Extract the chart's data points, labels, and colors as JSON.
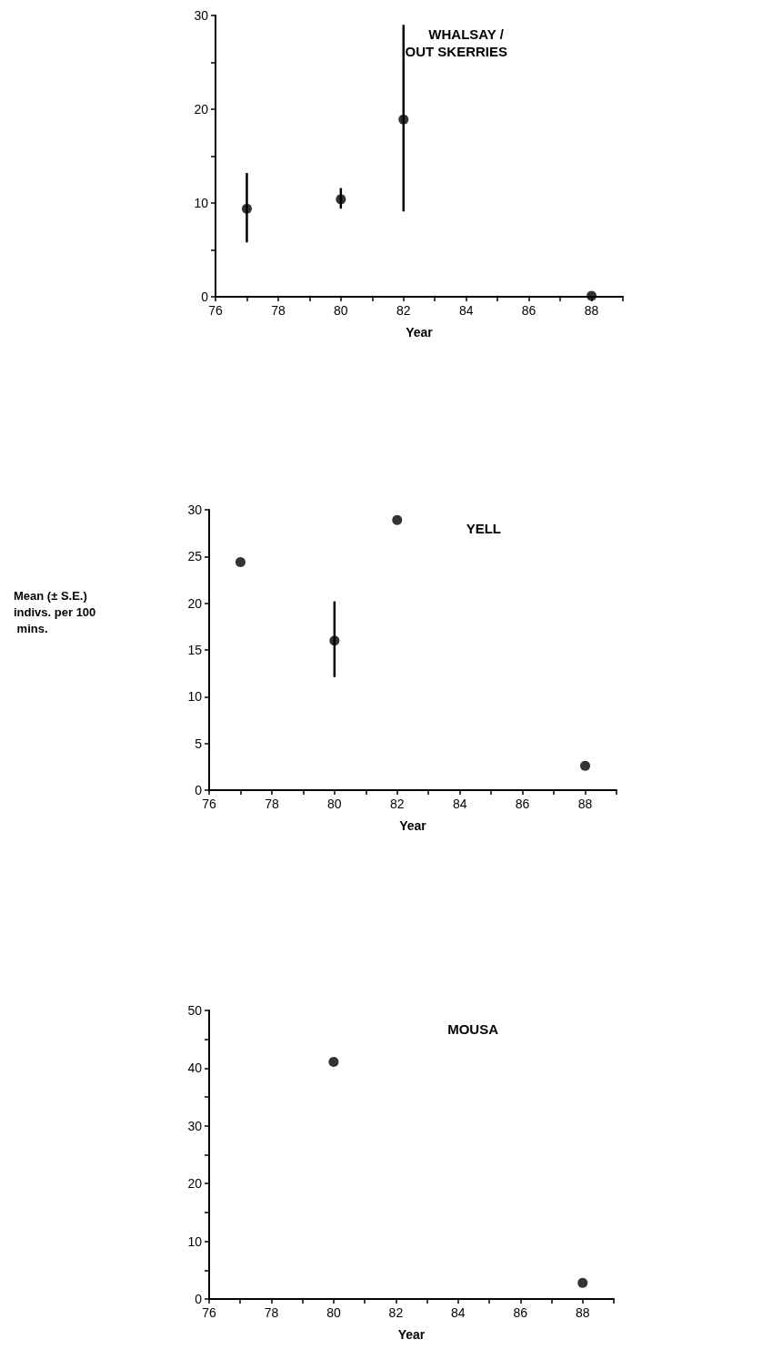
{
  "chart_data": [
    {
      "type": "scatter",
      "title": "WHALSAY / OUT SKERRIES",
      "xlabel": "Year",
      "x": [
        77,
        80,
        82,
        88
      ],
      "values": [
        9.4,
        10.4,
        18.9,
        0.1
      ],
      "errors": [
        [
          5.8,
          13.2
        ],
        [
          9.4,
          11.6
        ],
        [
          9.1,
          29.0
        ],
        null
      ],
      "color": "#000000",
      "marker": "circle",
      "xlim": [
        76,
        89
      ],
      "xticks": [
        76,
        {
          "value": 77,
          "label": null
        },
        78,
        {
          "value": 79,
          "label": null
        },
        80,
        {
          "value": 81,
          "label": null
        },
        82,
        {
          "value": 83,
          "label": null
        },
        84,
        {
          "value": 85,
          "label": null
        },
        86,
        {
          "value": 87,
          "label": null
        },
        88,
        {
          "value": 89,
          "label": null
        }
      ],
      "ylim": [
        0,
        30
      ],
      "yticks": [
        0,
        {
          "value": 5,
          "label": null
        },
        10,
        {
          "value": 15,
          "label": null
        },
        20,
        {
          "value": 25,
          "label": null
        },
        30
      ],
      "grid": false
    },
    {
      "type": "scatter",
      "title": "YELL",
      "xlabel": "Year",
      "ylabel": "Mean (± S.E.) indivs. per 100 mins.",
      "x": [
        77,
        80,
        82,
        88
      ],
      "values": [
        24.4,
        16.0,
        28.9,
        2.6
      ],
      "errors": [
        null,
        [
          12.1,
          20.2
        ],
        null,
        null
      ],
      "color": "#000000",
      "marker": "circle",
      "xlim": [
        76,
        89
      ],
      "xticks": [
        76,
        {
          "value": 77,
          "label": null
        },
        78,
        {
          "value": 79,
          "label": null
        },
        80,
        {
          "value": 81,
          "label": null
        },
        82,
        {
          "value": 83,
          "label": null
        },
        84,
        {
          "value": 85,
          "label": null
        },
        86,
        {
          "value": 87,
          "label": null
        },
        88,
        {
          "value": 89,
          "label": null
        }
      ],
      "ylim": [
        0,
        30
      ],
      "yticks": [
        0,
        5,
        10,
        15,
        20,
        25,
        30
      ],
      "grid": false
    },
    {
      "type": "scatter",
      "title": "MOUSA",
      "xlabel": "Year",
      "x": [
        80,
        88
      ],
      "values": [
        41.1,
        2.8
      ],
      "color": "#000000",
      "marker": "circle",
      "xlim": [
        76,
        89
      ],
      "xticks": [
        76,
        {
          "value": 77,
          "label": null
        },
        78,
        {
          "value": 79,
          "label": null
        },
        80,
        {
          "value": 81,
          "label": null
        },
        82,
        {
          "value": 83,
          "label": null
        },
        84,
        {
          "value": 85,
          "label": null
        },
        86,
        {
          "value": 87,
          "label": null
        },
        88,
        {
          "value": 89,
          "label": null
        }
      ],
      "ylim": [
        0,
        50
      ],
      "yticks": [
        0,
        {
          "value": 5,
          "label": null
        },
        10,
        {
          "value": 15,
          "label": null
        },
        20,
        {
          "value": 25,
          "label": null
        },
        30,
        {
          "value": 35,
          "label": null
        },
        40,
        {
          "value": 45,
          "label": null
        },
        50
      ],
      "grid": false
    }
  ]
}
